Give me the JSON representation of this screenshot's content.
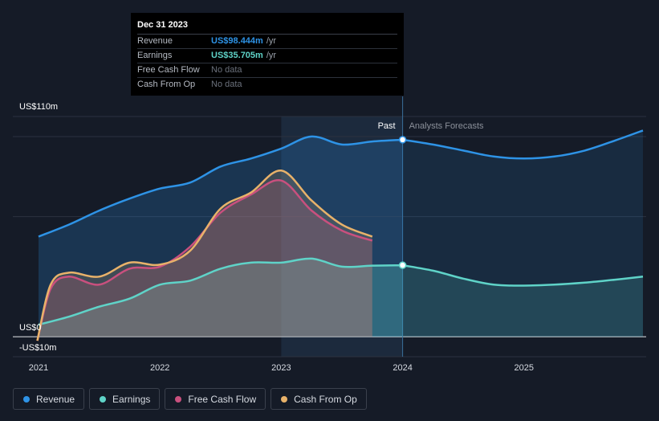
{
  "chart_data": {
    "type": "area",
    "title": "",
    "y_unit_labels": {
      "top": "US$110m",
      "zero": "US$0",
      "bottom": "-US$10m"
    },
    "ylim": [
      -10,
      110
    ],
    "x_ticks": [
      {
        "label": "2021",
        "x": 2021.0
      },
      {
        "label": "2022",
        "x": 2022.0
      },
      {
        "label": "2023",
        "x": 2023.0
      },
      {
        "label": "2024",
        "x": 2024.0
      },
      {
        "label": "2025",
        "x": 2025.0
      }
    ],
    "xlim": [
      2020.9,
      2025.98
    ],
    "divider_x": 2024.0,
    "highlight_x": 2023.0,
    "past_label": "Past",
    "forecast_label": "Analysts Forecasts",
    "series": [
      {
        "name": "Revenue",
        "color": "#2e93e6",
        "fill": true,
        "points": [
          [
            2021.0,
            50
          ],
          [
            2021.25,
            56
          ],
          [
            2021.5,
            63
          ],
          [
            2021.75,
            69
          ],
          [
            2022.0,
            74
          ],
          [
            2022.25,
            77
          ],
          [
            2022.5,
            85
          ],
          [
            2022.75,
            89
          ],
          [
            2023.0,
            94
          ],
          [
            2023.25,
            100
          ],
          [
            2023.5,
            96
          ],
          [
            2023.75,
            97.5
          ],
          [
            2024.0,
            98.4
          ]
        ],
        "forecast": [
          [
            2024.0,
            98.4
          ],
          [
            2024.25,
            96
          ],
          [
            2024.5,
            93
          ],
          [
            2024.75,
            90
          ],
          [
            2025.0,
            89
          ],
          [
            2025.25,
            90
          ],
          [
            2025.5,
            93
          ],
          [
            2025.75,
            98
          ],
          [
            2025.98,
            103
          ]
        ]
      },
      {
        "name": "Earnings",
        "color": "#5fd3c8",
        "fill": true,
        "points": [
          [
            2021.0,
            6
          ],
          [
            2021.25,
            10
          ],
          [
            2021.5,
            15
          ],
          [
            2021.75,
            19
          ],
          [
            2022.0,
            26
          ],
          [
            2022.25,
            28
          ],
          [
            2022.5,
            34
          ],
          [
            2022.75,
            37
          ],
          [
            2023.0,
            37
          ],
          [
            2023.25,
            39
          ],
          [
            2023.5,
            35
          ],
          [
            2023.75,
            35.5
          ],
          [
            2024.0,
            35.7
          ]
        ],
        "forecast": [
          [
            2024.0,
            35.7
          ],
          [
            2024.25,
            33
          ],
          [
            2024.5,
            29
          ],
          [
            2024.75,
            26
          ],
          [
            2025.0,
            25.5
          ],
          [
            2025.25,
            26
          ],
          [
            2025.5,
            27
          ],
          [
            2025.75,
            28.5
          ],
          [
            2025.98,
            30
          ]
        ]
      },
      {
        "name": "Free Cash Flow",
        "color": "#c9507e",
        "fill": true,
        "points": [
          [
            2020.99,
            -2
          ],
          [
            2021.1,
            24
          ],
          [
            2021.25,
            30
          ],
          [
            2021.5,
            26
          ],
          [
            2021.75,
            34
          ],
          [
            2022.0,
            35
          ],
          [
            2022.25,
            45
          ],
          [
            2022.5,
            62
          ],
          [
            2022.75,
            71
          ],
          [
            2023.0,
            78
          ],
          [
            2023.25,
            63
          ],
          [
            2023.5,
            53
          ],
          [
            2023.75,
            48
          ]
        ],
        "forecast": []
      },
      {
        "name": "Cash From Op",
        "color": "#e8b26a",
        "fill": true,
        "points": [
          [
            2020.99,
            -2
          ],
          [
            2021.1,
            26
          ],
          [
            2021.25,
            32
          ],
          [
            2021.5,
            30
          ],
          [
            2021.75,
            37
          ],
          [
            2022.0,
            36
          ],
          [
            2022.25,
            43
          ],
          [
            2022.5,
            64
          ],
          [
            2022.75,
            72
          ],
          [
            2023.0,
            83
          ],
          [
            2023.25,
            68
          ],
          [
            2023.5,
            56
          ],
          [
            2023.75,
            50
          ]
        ],
        "forecast": []
      }
    ],
    "markers": [
      {
        "series": "Revenue",
        "x": 2024.0,
        "y": 98.4
      },
      {
        "series": "Earnings",
        "x": 2024.0,
        "y": 35.7
      }
    ]
  },
  "tooltip": {
    "date": "Dec 31 2023",
    "rows": [
      {
        "label": "Revenue",
        "value": "US$98.444m",
        "unit": "/yr",
        "color": "#2e93e6"
      },
      {
        "label": "Earnings",
        "value": "US$35.705m",
        "unit": "/yr",
        "color": "#5fd3c8"
      },
      {
        "label": "Free Cash Flow",
        "nodata": "No data"
      },
      {
        "label": "Cash From Op",
        "nodata": "No data"
      }
    ]
  },
  "legend": [
    {
      "label": "Revenue",
      "color": "#2e93e6"
    },
    {
      "label": "Earnings",
      "color": "#5fd3c8"
    },
    {
      "label": "Free Cash Flow",
      "color": "#c9507e"
    },
    {
      "label": "Cash From Op",
      "color": "#e8b26a"
    }
  ]
}
